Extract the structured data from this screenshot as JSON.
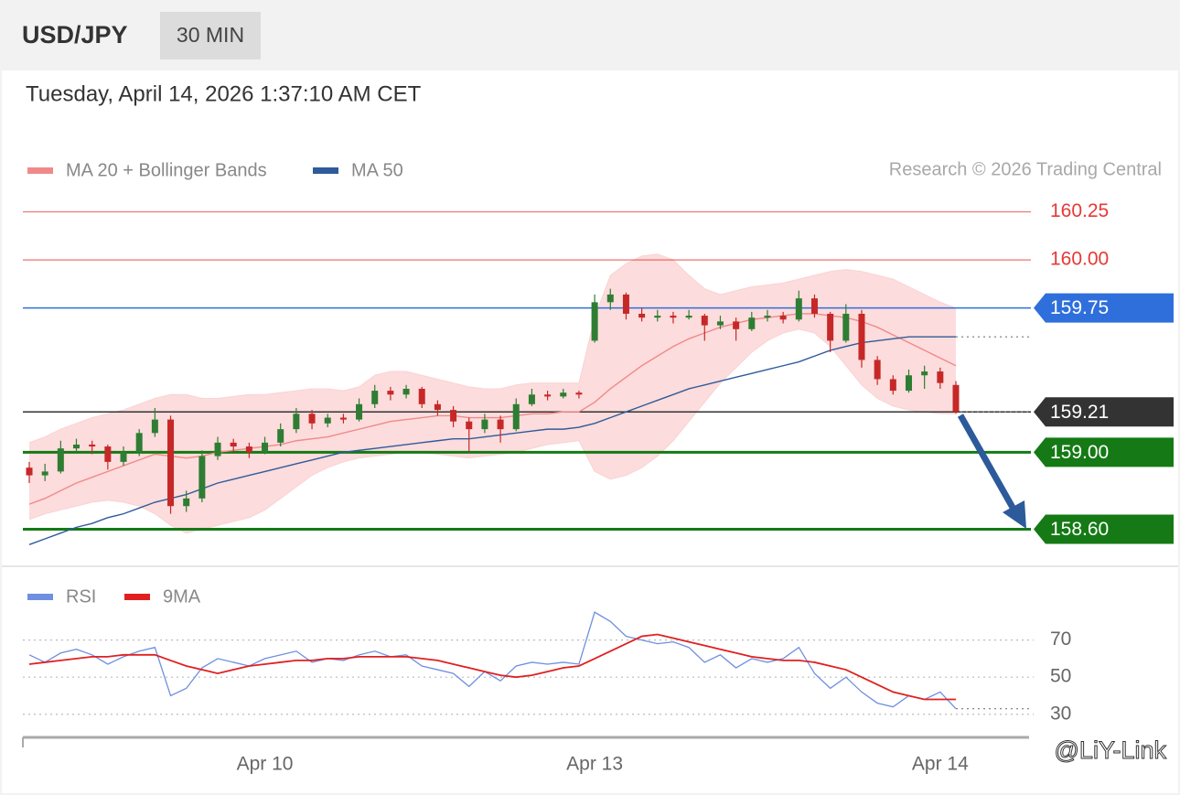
{
  "header": {
    "symbol": "USD/JPY",
    "timeframe": "30 MIN"
  },
  "timestamp": "Tuesday, April 14, 2026 1:37:10 AM CET",
  "watermark": "@LiY-Link",
  "chart_data": [
    {
      "type": "candlestick",
      "credit": "Research © 2026 Trading Central",
      "up_color": "#2e7d32",
      "down_color": "#c62828",
      "ylim": [
        158.45,
        160.4
      ],
      "categories": [
        null,
        null,
        null,
        null,
        null,
        null,
        null,
        null,
        null,
        null,
        null,
        null,
        null,
        null,
        null,
        "Apr 10",
        null,
        null,
        null,
        null,
        null,
        null,
        null,
        null,
        null,
        null,
        null,
        null,
        null,
        null,
        null,
        null,
        null,
        null,
        null,
        null,
        "Apr 13",
        null,
        null,
        null,
        null,
        null,
        null,
        null,
        null,
        null,
        null,
        null,
        null,
        null,
        null,
        null,
        null,
        null,
        null,
        null,
        null,
        null,
        "Apr 14",
        null
      ],
      "ohlc": [
        [
          158.92,
          158.95,
          158.84,
          158.88
        ],
        [
          158.88,
          158.94,
          158.85,
          158.9
        ],
        [
          158.9,
          159.06,
          158.89,
          159.02
        ],
        [
          159.02,
          159.07,
          159.0,
          159.04
        ],
        [
          159.04,
          159.06,
          158.99,
          159.03
        ],
        [
          159.03,
          159.04,
          158.91,
          158.95
        ],
        [
          158.95,
          159.03,
          158.93,
          159.0
        ],
        [
          159.0,
          159.12,
          158.98,
          159.1
        ],
        [
          159.1,
          159.23,
          159.08,
          159.17
        ],
        [
          159.17,
          159.19,
          158.68,
          158.72
        ],
        [
          158.72,
          158.8,
          158.69,
          158.76
        ],
        [
          158.76,
          159.01,
          158.74,
          158.98
        ],
        [
          158.98,
          159.08,
          158.96,
          159.05
        ],
        [
          159.05,
          159.07,
          159.0,
          159.03
        ],
        [
          159.03,
          159.05,
          158.97,
          159.0
        ],
        [
          159.0,
          159.08,
          158.99,
          159.05
        ],
        [
          159.05,
          159.15,
          159.03,
          159.12
        ],
        [
          159.12,
          159.23,
          159.1,
          159.2
        ],
        [
          159.2,
          159.22,
          159.12,
          159.15
        ],
        [
          159.15,
          159.2,
          159.13,
          159.18
        ],
        [
          159.18,
          159.2,
          159.15,
          159.17
        ],
        [
          159.17,
          159.28,
          159.16,
          159.25
        ],
        [
          159.25,
          159.35,
          159.23,
          159.32
        ],
        [
          159.32,
          159.34,
          159.27,
          159.3
        ],
        [
          159.3,
          159.35,
          159.28,
          159.33
        ],
        [
          159.33,
          159.34,
          159.23,
          159.25
        ],
        [
          159.25,
          159.27,
          159.19,
          159.22
        ],
        [
          159.22,
          159.24,
          159.13,
          159.16
        ],
        [
          159.16,
          159.18,
          159.0,
          159.12
        ],
        [
          159.12,
          159.2,
          159.1,
          159.17
        ],
        [
          159.17,
          159.19,
          159.05,
          159.12
        ],
        [
          159.12,
          159.28,
          159.11,
          159.25
        ],
        [
          159.25,
          159.33,
          159.24,
          159.3
        ],
        [
          159.3,
          159.32,
          159.27,
          159.29
        ],
        [
          159.29,
          159.33,
          159.28,
          159.31
        ],
        [
          159.31,
          159.32,
          159.28,
          159.3
        ],
        [
          159.58,
          159.82,
          159.57,
          159.78
        ],
        [
          159.78,
          159.85,
          159.74,
          159.82
        ],
        [
          159.82,
          159.83,
          159.69,
          159.72
        ],
        [
          159.72,
          159.75,
          159.68,
          159.7
        ],
        [
          159.7,
          159.74,
          159.68,
          159.71
        ],
        [
          159.71,
          159.73,
          159.67,
          159.7
        ],
        [
          159.7,
          159.74,
          159.69,
          159.71
        ],
        [
          159.71,
          159.72,
          159.58,
          159.66
        ],
        [
          159.66,
          159.71,
          159.64,
          159.68
        ],
        [
          159.68,
          159.7,
          159.58,
          159.64
        ],
        [
          159.64,
          159.73,
          159.63,
          159.7
        ],
        [
          159.7,
          159.74,
          159.68,
          159.71
        ],
        [
          159.71,
          159.73,
          159.67,
          159.69
        ],
        [
          159.69,
          159.84,
          159.68,
          159.8
        ],
        [
          159.8,
          159.82,
          159.7,
          159.72
        ],
        [
          159.72,
          159.73,
          159.52,
          159.58
        ],
        [
          159.58,
          159.77,
          159.57,
          159.72
        ],
        [
          159.72,
          159.74,
          159.44,
          159.48
        ],
        [
          159.48,
          159.5,
          159.35,
          159.38
        ],
        [
          159.38,
          159.4,
          159.3,
          159.32
        ],
        [
          159.32,
          159.43,
          159.31,
          159.4
        ],
        [
          159.4,
          159.45,
          159.33,
          159.42
        ],
        [
          159.42,
          159.44,
          159.33,
          159.36
        ],
        [
          159.35,
          159.37,
          159.2,
          159.21
        ]
      ],
      "series": [
        {
          "name": "MA 20 + Bollinger Bands",
          "color": "#f08a8a",
          "band_color": "#fbd3d3",
          "values": [
            158.73,
            158.76,
            158.8,
            158.84,
            158.87,
            158.9,
            158.93,
            158.96,
            158.99,
            158.98,
            158.97,
            158.98,
            159.0,
            159.01,
            159.02,
            159.03,
            159.04,
            159.06,
            159.07,
            159.08,
            159.1,
            159.12,
            159.14,
            159.16,
            159.17,
            159.18,
            159.19,
            159.19,
            159.18,
            159.18,
            159.18,
            159.19,
            159.2,
            159.2,
            159.21,
            159.21,
            159.26,
            159.33,
            159.39,
            159.45,
            159.5,
            159.55,
            159.59,
            159.62,
            159.65,
            159.67,
            159.69,
            159.7,
            159.71,
            159.72,
            159.72,
            159.71,
            159.7,
            159.68,
            159.65,
            159.61,
            159.57,
            159.53,
            159.49,
            159.45
          ],
          "upper": [
            159.05,
            159.08,
            159.12,
            159.15,
            159.18,
            159.2,
            159.22,
            159.25,
            159.28,
            159.3,
            159.3,
            159.28,
            159.28,
            159.29,
            159.3,
            159.3,
            159.31,
            159.32,
            159.33,
            159.33,
            159.32,
            159.34,
            159.4,
            159.42,
            159.42,
            159.4,
            159.38,
            159.36,
            159.34,
            159.33,
            159.33,
            159.35,
            159.36,
            159.36,
            159.36,
            159.36,
            159.7,
            159.92,
            159.98,
            160.02,
            160.03,
            160.0,
            159.92,
            159.85,
            159.82,
            159.84,
            159.86,
            159.87,
            159.88,
            159.9,
            159.92,
            159.94,
            159.95,
            159.94,
            159.92,
            159.9,
            159.86,
            159.82,
            159.78,
            159.75
          ],
          "lower": [
            158.65,
            158.68,
            158.7,
            158.72,
            158.74,
            158.75,
            158.74,
            158.72,
            158.68,
            158.62,
            158.58,
            158.6,
            158.62,
            158.64,
            158.66,
            158.7,
            158.76,
            158.82,
            158.88,
            158.92,
            158.95,
            158.97,
            158.98,
            158.99,
            159.0,
            159.0,
            158.99,
            158.98,
            158.97,
            158.98,
            158.99,
            159.0,
            159.02,
            159.04,
            159.05,
            159.06,
            158.9,
            158.86,
            158.88,
            158.92,
            158.98,
            159.06,
            159.16,
            159.26,
            159.36,
            159.44,
            159.52,
            159.58,
            159.62,
            159.64,
            159.62,
            159.55,
            159.45,
            159.35,
            159.28,
            159.24,
            159.22,
            159.21,
            159.2,
            159.2
          ]
        },
        {
          "name": "MA 50",
          "color": "#2f5b9a",
          "values": [
            158.52,
            158.55,
            158.58,
            158.61,
            158.63,
            158.66,
            158.68,
            158.71,
            158.74,
            158.76,
            158.78,
            158.81,
            158.84,
            158.86,
            158.88,
            158.9,
            158.92,
            158.94,
            158.96,
            158.98,
            159.0,
            159.01,
            159.02,
            159.03,
            159.04,
            159.05,
            159.06,
            159.07,
            159.07,
            159.08,
            159.09,
            159.1,
            159.11,
            159.12,
            159.12,
            159.13,
            159.15,
            159.18,
            159.21,
            159.24,
            159.27,
            159.3,
            159.33,
            159.35,
            159.37,
            159.39,
            159.41,
            159.43,
            159.45,
            159.47,
            159.5,
            159.53,
            159.55,
            159.57,
            159.58,
            159.59,
            159.6,
            159.6,
            159.6,
            159.6
          ]
        }
      ],
      "levels": [
        {
          "value": 160.25,
          "label": "160.25",
          "color": "#e53935",
          "style": "text",
          "bold": false
        },
        {
          "value": 160.0,
          "label": "160.00",
          "color": "#e53935",
          "style": "text",
          "bold": false
        },
        {
          "value": 159.75,
          "label": "159.75",
          "color": "#2f6fdc",
          "style": "tag",
          "bold": false
        },
        {
          "value": 159.21,
          "label": "159.21",
          "color": "#333333",
          "style": "tag",
          "bold": false
        },
        {
          "value": 159.0,
          "label": "159.00",
          "color": "#157a15",
          "style": "tag",
          "bold": true
        },
        {
          "value": 158.6,
          "label": "158.60",
          "color": "#157a15",
          "style": "tag",
          "bold": true
        }
      ]
    },
    {
      "type": "line",
      "ylim": [
        22,
        90
      ],
      "yticks": [
        70,
        50,
        30
      ],
      "grid": true,
      "series": [
        {
          "name": "RSI",
          "color": "#6f8fe0",
          "values": [
            62,
            58,
            63,
            65,
            62,
            57,
            61,
            64,
            66,
            40,
            44,
            55,
            60,
            58,
            56,
            60,
            62,
            64,
            58,
            60,
            59,
            62,
            64,
            61,
            62,
            56,
            54,
            52,
            45,
            53,
            48,
            56,
            58,
            57,
            58,
            57,
            85,
            80,
            72,
            70,
            68,
            69,
            66,
            58,
            62,
            55,
            60,
            58,
            60,
            66,
            52,
            44,
            50,
            42,
            36,
            34,
            40,
            38,
            42,
            33
          ]
        },
        {
          "name": "9MA",
          "color": "#e02020",
          "values": [
            57,
            58,
            59,
            60,
            61,
            61,
            62,
            62,
            62,
            59,
            56,
            54,
            52,
            54,
            56,
            57,
            58,
            59,
            59,
            60,
            60,
            61,
            61,
            61,
            61,
            60,
            59,
            57,
            55,
            53,
            51,
            50,
            51,
            53,
            55,
            56,
            60,
            64,
            68,
            72,
            73,
            71,
            69,
            67,
            65,
            63,
            61,
            60,
            59,
            59,
            58,
            56,
            54,
            50,
            46,
            42,
            40,
            38,
            38,
            38
          ]
        }
      ]
    }
  ]
}
